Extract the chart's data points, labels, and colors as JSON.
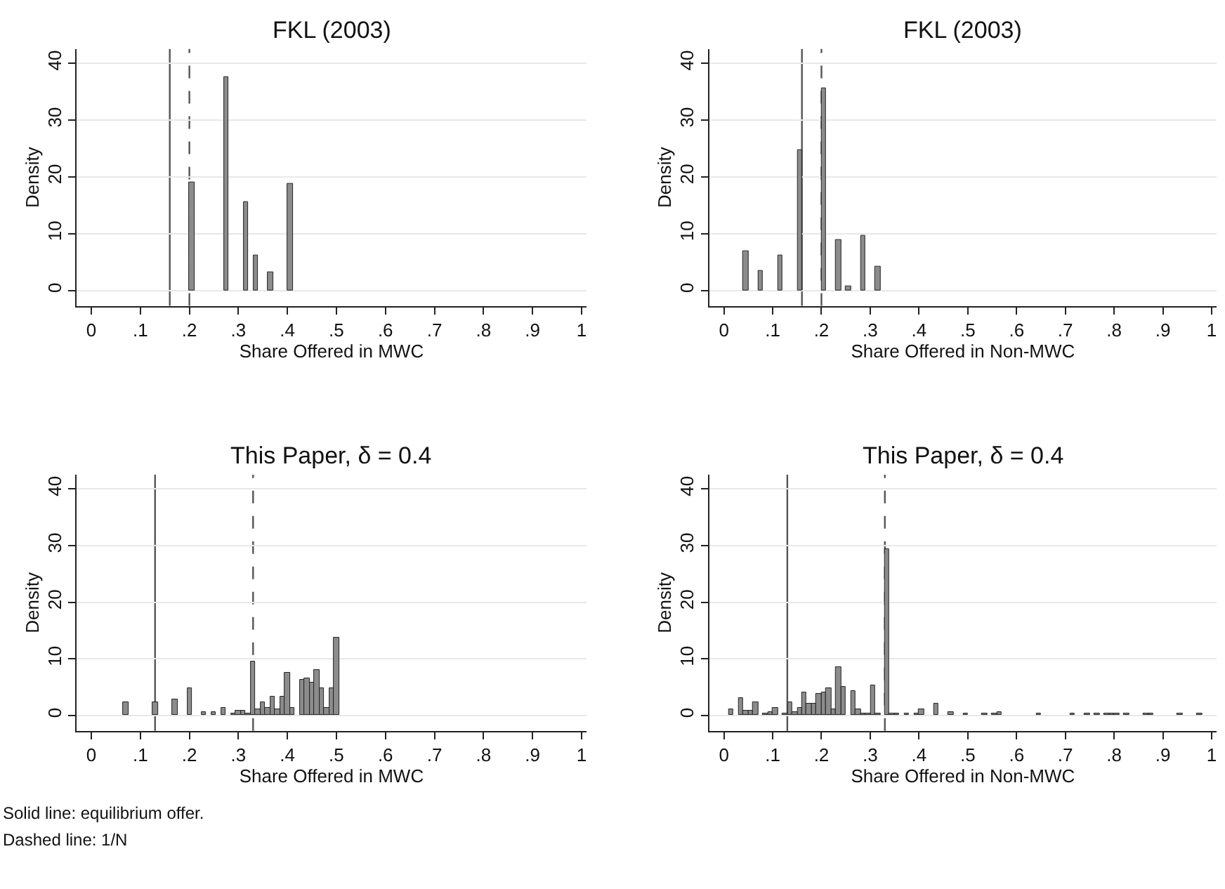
{
  "chart_data": [
    {
      "type": "histogram",
      "title": "FKL (2003)",
      "xlabel": "Share Offered in MWC",
      "ylabel": "Density",
      "color": "#8c8c8c",
      "bins": [
        0.2,
        0.21,
        0.27,
        0.28,
        0.31,
        0.32,
        0.33,
        0.34,
        0.36,
        0.37,
        0.4,
        0.41
      ],
      "values": [
        19,
        null,
        37.5,
        null,
        15.5,
        null,
        6.3,
        null,
        3.1,
        null,
        18.8
      ],
      "xlim": [
        -0.03,
        1.01
      ],
      "ylim": [
        -2.7,
        42.5
      ],
      "xticks": [
        0,
        {
          "value": 0.1,
          "label": ".1"
        },
        {
          "value": 0.2,
          "label": ".2"
        },
        {
          "value": 0.3,
          "label": ".3"
        },
        {
          "value": 0.4,
          "label": ".4"
        },
        {
          "value": 0.5,
          "label": ".5"
        },
        {
          "value": 0.6,
          "label": ".6"
        },
        {
          "value": 0.7,
          "label": ".7"
        },
        {
          "value": 0.8,
          "label": ".8"
        },
        {
          "value": 0.9,
          "label": ".9"
        },
        1
      ],
      "yticks": [
        0,
        10,
        20,
        30,
        40
      ],
      "grid": "y",
      "ref_lines": [
        {
          "axis": "x",
          "value": 0.16,
          "line_style": "solid",
          "color": "#555555"
        },
        {
          "axis": "x",
          "value": 0.2,
          "line_style": "dashed",
          "color": "#555555"
        }
      ]
    },
    {
      "type": "histogram",
      "title": "FKL (2003)",
      "xlabel": "Share Offered in Non-MWC",
      "ylabel": "Density",
      "color": "#8c8c8c",
      "bins": [
        0.04,
        0.05,
        0.07,
        0.08,
        0.11,
        0.12,
        0.15,
        0.16,
        0.2,
        0.21,
        0.23,
        0.24,
        0.25,
        0.26,
        0.28,
        0.29,
        0.31,
        0.32
      ],
      "values": [
        7,
        null,
        3.5,
        null,
        6.2,
        null,
        24.7,
        null,
        35.7,
        null,
        9,
        null,
        0.8,
        null,
        9.7,
        null,
        4.2
      ],
      "xlim": [
        -0.03,
        1.01
      ],
      "ylim": [
        -2.7,
        42.5
      ],
      "xticks": [
        0,
        {
          "value": 0.1,
          "label": ".1"
        },
        {
          "value": 0.2,
          "label": ".2"
        },
        {
          "value": 0.3,
          "label": ".3"
        },
        {
          "value": 0.4,
          "label": ".4"
        },
        {
          "value": 0.5,
          "label": ".5"
        },
        {
          "value": 0.6,
          "label": ".6"
        },
        {
          "value": 0.7,
          "label": ".7"
        },
        {
          "value": 0.8,
          "label": ".8"
        },
        {
          "value": 0.9,
          "label": ".9"
        },
        1
      ],
      "yticks": [
        0,
        10,
        20,
        30,
        40
      ],
      "grid": "y",
      "ref_lines": [
        {
          "axis": "x",
          "value": 0.16,
          "line_style": "solid",
          "color": "#555555"
        },
        {
          "axis": "x",
          "value": 0.2,
          "line_style": "dashed",
          "color": "#555555"
        }
      ]
    },
    {
      "type": "histogram",
      "title": "This Paper, δ = 0.4",
      "xlabel": "Share Offered in MWC",
      "ylabel": "Density",
      "color": "#8c8c8c",
      "bins": [
        0.065,
        0.075,
        0.125,
        0.135,
        0.165,
        0.175,
        0.195,
        0.205,
        0.225,
        0.235,
        0.245,
        0.255,
        0.265,
        0.275,
        0.285,
        0.295,
        0.305,
        0.315,
        0.325,
        0.335,
        0.345,
        0.355,
        0.365,
        0.375,
        0.385,
        0.395,
        0.405,
        0.415,
        0.425,
        0.435,
        0.445,
        0.455,
        0.465,
        0.475,
        0.485,
        0.495,
        0.505
      ],
      "values": [
        2.3,
        null,
        2.3,
        null,
        2.8,
        null,
        4.8,
        null,
        0.5,
        null,
        0.5,
        null,
        1.3,
        null,
        0.4,
        0.8,
        0.8,
        0.3,
        9.6,
        1.0,
        2.3,
        1.4,
        3.3,
        1.0,
        3.3,
        7.6,
        1.4,
        null,
        6.2,
        6.6,
        5.8,
        8.0,
        4.8,
        1.4,
        4.8,
        13.8
      ],
      "xlim": [
        -0.03,
        1.01
      ],
      "ylim": [
        -2.7,
        42.5
      ],
      "xticks": [
        0,
        {
          "value": 0.1,
          "label": ".1"
        },
        {
          "value": 0.2,
          "label": ".2"
        },
        {
          "value": 0.3,
          "label": ".3"
        },
        {
          "value": 0.4,
          "label": ".4"
        },
        {
          "value": 0.5,
          "label": ".5"
        },
        {
          "value": 0.6,
          "label": ".6"
        },
        {
          "value": 0.7,
          "label": ".7"
        },
        {
          "value": 0.8,
          "label": ".8"
        },
        {
          "value": 0.9,
          "label": ".9"
        },
        1
      ],
      "yticks": [
        0,
        10,
        20,
        30,
        40
      ],
      "grid": "y",
      "ref_lines": [
        {
          "axis": "x",
          "value": 0.13,
          "line_style": "solid",
          "color": "#555555"
        },
        {
          "axis": "x",
          "value": 0.33,
          "line_style": "dashed",
          "color": "#555555"
        }
      ]
    },
    {
      "type": "histogram",
      "title": "This Paper, δ = 0.4",
      "xlabel": "Share Offered in Non-MWC",
      "ylabel": "Density",
      "color": "#8c8c8c",
      "bins": [
        0.01,
        0.02,
        0.03,
        0.04,
        0.05,
        0.06,
        0.07,
        0.08,
        0.09,
        0.1,
        0.11,
        0.12,
        0.13,
        0.14,
        0.15,
        0.16,
        0.17,
        0.18,
        0.19,
        0.2,
        0.21,
        0.22,
        0.23,
        0.24,
        0.25,
        0.26,
        0.27,
        0.28,
        0.29,
        0.3,
        0.31,
        0.32,
        0.33,
        0.34,
        0.35,
        0.36,
        0.37,
        0.38,
        0.39,
        0.4,
        0.41,
        0.43,
        0.44,
        0.46,
        0.47,
        0.49,
        0.5,
        0.53,
        0.54,
        0.55,
        0.56,
        0.57,
        0.64,
        0.65,
        0.71,
        0.72,
        0.74,
        0.75,
        0.76,
        0.77,
        0.78,
        0.79,
        0.8,
        0.81,
        0.82,
        0.83,
        0.86,
        0.87,
        0.88,
        0.93,
        0.94,
        0.97,
        0.98
      ],
      "values": [
        1.2,
        null,
        3.0,
        0.8,
        0.8,
        2.3,
        null,
        0.3,
        0.5,
        1.4,
        null,
        0.3,
        2.3,
        0.7,
        1.4,
        4.1,
        2.2,
        2.2,
        3.7,
        4.1,
        4.8,
        1.2,
        8.6,
        5.1,
        null,
        4.4,
        1.0,
        0.3,
        0.3,
        5.3,
        0.3,
        null,
        29.3,
        0.4,
        0.3,
        null,
        0.3,
        null,
        0.3,
        1.0,
        null,
        2.1,
        null,
        0.7,
        null,
        0.3,
        null,
        0.3,
        null,
        0.4,
        0.7,
        null,
        0.3,
        null,
        0.3,
        null,
        0.3,
        null,
        0.3,
        null,
        0.3,
        0.3,
        0.3,
        null,
        0.3,
        null,
        0.3,
        0.3,
        null,
        0.3,
        null,
        0.3
      ],
      "xlim": [
        -0.03,
        1.01
      ],
      "ylim": [
        -2.7,
        42.5
      ],
      "xticks": [
        0,
        {
          "value": 0.1,
          "label": ".1"
        },
        {
          "value": 0.2,
          "label": ".2"
        },
        {
          "value": 0.3,
          "label": ".3"
        },
        {
          "value": 0.4,
          "label": ".4"
        },
        {
          "value": 0.5,
          "label": ".5"
        },
        {
          "value": 0.6,
          "label": ".6"
        },
        {
          "value": 0.7,
          "label": ".7"
        },
        {
          "value": 0.8,
          "label": ".8"
        },
        {
          "value": 0.9,
          "label": ".9"
        },
        1
      ],
      "yticks": [
        0,
        10,
        20,
        30,
        40
      ],
      "grid": "y",
      "ref_lines": [
        {
          "axis": "x",
          "value": 0.13,
          "line_style": "solid",
          "color": "#555555"
        },
        {
          "axis": "x",
          "value": 0.33,
          "line_style": "dashed",
          "color": "#555555"
        }
      ],
      "annotations": [
        "Solid line: equilibrium offer.",
        "Dashed line: 1/N"
      ]
    }
  ]
}
